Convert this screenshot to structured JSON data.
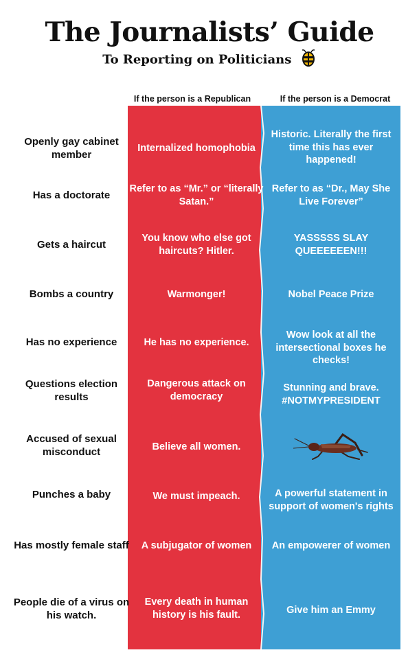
{
  "header": {
    "title": "The Journalists’ Guide",
    "subtitle": "To Reporting on Politicians",
    "logo_icon": "babylon-bee-logo-icon"
  },
  "columns": {
    "republican": "If the person is a Republican",
    "democrat": "If the person is a Democrat"
  },
  "colors": {
    "red": "#e3333f",
    "blue": "#3e9fd4"
  },
  "rows": [
    {
      "label": "Openly gay cabinet member",
      "republican": "Internalized homophobia",
      "democrat": "Historic. Literally the first time this has ever happened!"
    },
    {
      "label": "Has a doctorate",
      "republican": "Refer to as “Mr.” or “literally Satan.”",
      "democrat": "Refer to as “Dr., May She Live Forever”"
    },
    {
      "label": "Gets a haircut",
      "republican": "You know who else got haircuts? Hitler.",
      "democrat": "YASSSSS SLAY QUEEEEEEN!!!"
    },
    {
      "label": "Bombs a country",
      "republican": "Warmonger!",
      "democrat": "Nobel Peace Prize"
    },
    {
      "label": "Has no experience",
      "republican": "He has no experience.",
      "democrat": "Wow look at all the intersectional boxes he checks!"
    },
    {
      "label": "Questions election results",
      "republican": "Dangerous attack on democracy",
      "democrat": "Stunning and brave. #NOTMYPRESIDENT"
    },
    {
      "label": "Accused of sexual misconduct",
      "republican": "Believe all women.",
      "democrat": "",
      "democrat_icon": "cricket-icon"
    },
    {
      "label": "Punches a baby",
      "republican": "We must impeach.",
      "democrat": "A powerful statement in support of women's rights"
    },
    {
      "label": "Has mostly female staff",
      "republican": "A subjugator of women",
      "democrat": "An empowerer of women"
    },
    {
      "label": "People die of a virus on his watch.",
      "republican": "Every death in human history is his fault.",
      "democrat": "Give him an Emmy"
    }
  ]
}
